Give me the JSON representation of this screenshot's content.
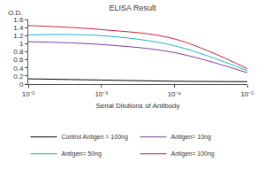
{
  "chart_data": {
    "type": "line",
    "title": "ELISA Result",
    "ylabel": "O.D.",
    "xlabel": "Serial Dilutions of Antibody",
    "x": [
      0.01,
      0.001,
      0.0001,
      1e-05
    ],
    "series": [
      {
        "name": "Control Antigen = 100ng",
        "color": "#000000",
        "values": [
          0.13,
          0.1,
          0.07,
          0.06
        ]
      },
      {
        "name": "Antigen= 10ng",
        "color": "#7b3f9e",
        "values": [
          1.05,
          0.98,
          0.78,
          0.28
        ]
      },
      {
        "name": "Antigen= 50ng",
        "color": "#1fb5c8",
        "values": [
          1.22,
          1.2,
          0.95,
          0.33
        ]
      },
      {
        "name": "Antigen= 100ng",
        "color": "#d0203a",
        "values": [
          1.45,
          1.35,
          1.12,
          0.38
        ]
      }
    ],
    "log": "x",
    "xlim": [
      0.01,
      1e-05
    ],
    "xticks": [
      {
        "value": 0.01,
        "label": "10⁻²"
      },
      {
        "value": 0.001,
        "label": "10⁻³"
      },
      {
        "value": 0.0001,
        "label": "10⁻⁴"
      },
      {
        "value": 1e-05,
        "label": "10⁻⁵"
      }
    ],
    "ylim": [
      0,
      1.6
    ],
    "yticks": [
      0,
      0.2,
      0.4,
      0.6,
      0.8,
      1,
      1.2,
      1.4,
      1.6
    ],
    "grid": false,
    "legend": "bottom"
  }
}
